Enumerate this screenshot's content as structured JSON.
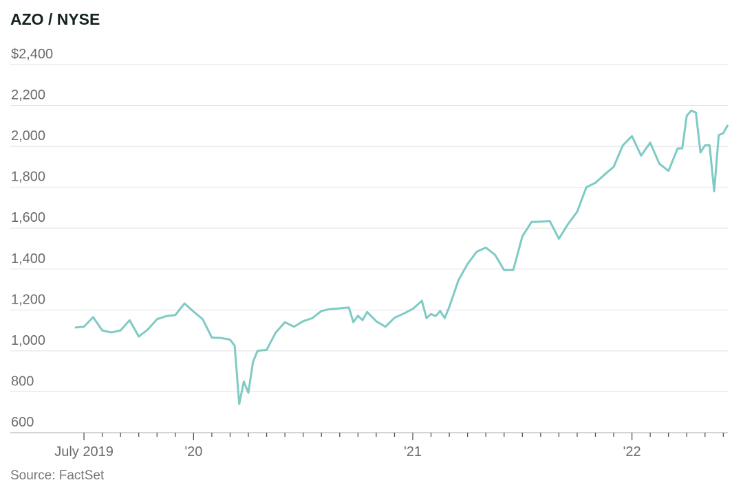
{
  "chart_data": {
    "type": "line",
    "title": "AZO / NYSE",
    "source": "Source: FactSet",
    "color": "#7ecac4",
    "grid": true,
    "xlim": [
      2019.164,
      2022.4375
    ],
    "ylim": [
      600,
      2400
    ],
    "yticks": [
      600,
      800,
      {
        "value": 1000,
        "label": "1,000"
      },
      {
        "value": 1200,
        "label": "1,200"
      },
      {
        "value": 1400,
        "label": "1,400"
      },
      {
        "value": 1600,
        "label": "1,600"
      },
      {
        "value": 1800,
        "label": "1,800"
      },
      {
        "value": 2000,
        "label": "2,000"
      },
      {
        "value": 2200,
        "label": "2,200"
      },
      {
        "value": 2400,
        "label": "$2,400"
      }
    ],
    "xticks": [
      {
        "value": 2019.5,
        "label": "July 2019"
      },
      {
        "value": 2020,
        "label": "'20"
      },
      {
        "value": 2021,
        "label": "'21"
      },
      {
        "value": 2022,
        "label": "'22"
      }
    ],
    "xminorticks": [
      2019.5833,
      2019.6667,
      2019.75,
      2019.8333,
      2019.9167,
      2020.0833,
      2020.1667,
      2020.25,
      2020.3333,
      2020.4167,
      2020.5,
      2020.5833,
      2020.6667,
      2020.75,
      2020.8333,
      2020.9167,
      2021.0833,
      2021.1667,
      2021.25,
      2021.3333,
      2021.4167,
      2021.5,
      2021.5833,
      2021.6667,
      2021.75,
      2021.8333,
      2021.9167,
      2022.0833,
      2022.1667,
      2022.25,
      2022.3333,
      2022.4167
    ],
    "x": [
      2019.4583,
      2019.5,
      2019.5417,
      2019.5833,
      2019.625,
      2019.6667,
      2019.7083,
      2019.75,
      2019.7917,
      2019.8333,
      2019.875,
      2019.9167,
      2019.9583,
      2020,
      2020.0417,
      2020.0833,
      2020.125,
      2020.1667,
      2020.1875,
      2020.2083,
      2020.2292,
      2020.25,
      2020.2708,
      2020.2917,
      2020.3333,
      2020.375,
      2020.4167,
      2020.4583,
      2020.5,
      2020.5417,
      2020.5833,
      2020.625,
      2020.6667,
      2020.7083,
      2020.7292,
      2020.75,
      2020.7708,
      2020.7917,
      2020.8333,
      2020.875,
      2020.9167,
      2020.9583,
      2021,
      2021.0417,
      2021.0625,
      2021.0833,
      2021.1042,
      2021.125,
      2021.1458,
      2021.1667,
      2021.2083,
      2021.25,
      2021.2917,
      2021.3333,
      2021.375,
      2021.4167,
      2021.4583,
      2021.5,
      2021.5417,
      2021.5833,
      2021.625,
      2021.6667,
      2021.7083,
      2021.75,
      2021.7917,
      2021.8333,
      2021.875,
      2021.9167,
      2021.9583,
      2022,
      2022.0417,
      2022.0833,
      2022.125,
      2022.1667,
      2022.2083,
      2022.2292,
      2022.25,
      2022.2708,
      2022.2917,
      2022.3125,
      2022.3333,
      2022.3542,
      2022.375,
      2022.3958,
      2022.4167,
      2022.4375
    ],
    "values": [
      1114,
      1118,
      1165,
      1100,
      1090,
      1100,
      1150,
      1070,
      1105,
      1155,
      1170,
      1175,
      1232,
      1192,
      1155,
      1065,
      1063,
      1055,
      1025,
      740,
      850,
      795,
      945,
      1000,
      1005,
      1090,
      1140,
      1118,
      1145,
      1160,
      1195,
      1205,
      1208,
      1212,
      1140,
      1172,
      1150,
      1190,
      1145,
      1118,
      1162,
      1182,
      1205,
      1245,
      1160,
      1180,
      1170,
      1195,
      1160,
      1215,
      1345,
      1425,
      1485,
      1505,
      1470,
      1395,
      1395,
      1560,
      1630,
      1632,
      1635,
      1548,
      1620,
      1680,
      1800,
      1822,
      1862,
      1900,
      2005,
      2050,
      1955,
      2018,
      1915,
      1880,
      1990,
      1990,
      2150,
      2175,
      2165,
      1970,
      2005,
      2005,
      1780,
      2055,
      2065,
      2105
    ]
  }
}
